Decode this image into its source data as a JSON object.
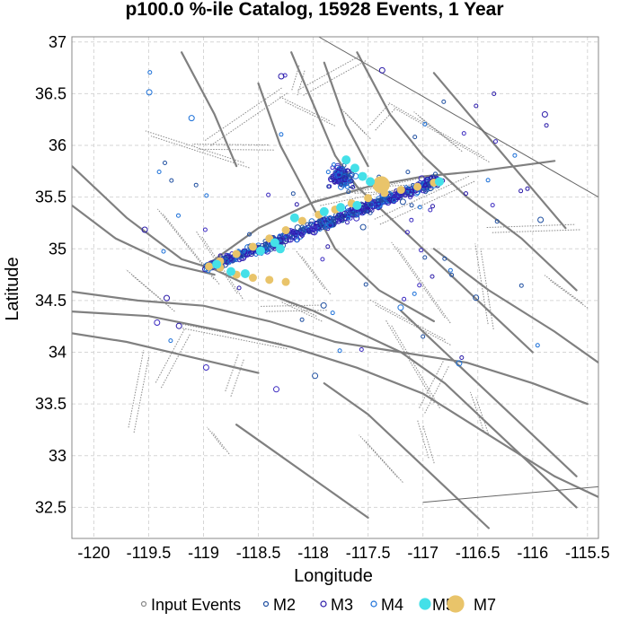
{
  "chart_data": {
    "type": "scatter",
    "title": "p100.0 %-ile Catalog, 15928 Events, 1 Year",
    "xlabel": "Longitude",
    "ylabel": "Latitude",
    "xlim": [
      -120.2,
      -115.4
    ],
    "ylim": [
      32.2,
      37.05
    ],
    "x_ticks": [
      -120,
      -119.5,
      -119,
      -118.5,
      -118,
      -117.5,
      -117,
      -116.5,
      -116,
      -115.5
    ],
    "x_tick_labels": [
      "-120",
      "-119.5",
      "-119",
      "-118.5",
      "-118",
      "-117.5",
      "-117",
      "-116.5",
      "-116",
      "-115.5"
    ],
    "y_ticks": [
      32.5,
      33,
      33.5,
      34,
      34.5,
      35,
      35.5,
      36,
      36.5,
      37
    ],
    "y_tick_labels": [
      "32.5",
      "33",
      "33.5",
      "34",
      "34.5",
      "35",
      "35.5",
      "36",
      "36.5",
      "37"
    ],
    "grid": true,
    "legend_placement": "bottom",
    "legend": [
      {
        "label": "Input Events",
        "marker": "open-circle-small",
        "color": "#888888"
      },
      {
        "label": "M2",
        "marker": "open-circle-small",
        "color": "#1f4fa0"
      },
      {
        "label": "M3",
        "marker": "open-circle",
        "color": "#2a1aa8"
      },
      {
        "label": "M4",
        "marker": "open-circle",
        "color": "#1a6fd8"
      },
      {
        "label": "M5",
        "marker": "filled-circle",
        "color": "#44e0e8"
      },
      {
        "label": "M7",
        "marker": "filled-circle-large",
        "color": "#e9c46a"
      }
    ],
    "series": [
      {
        "name": "M7",
        "color": "#e9c46a",
        "points": [
          {
            "x": -118.95,
            "y": 34.83
          },
          {
            "x": -118.85,
            "y": 34.82
          },
          {
            "x": -118.7,
            "y": 34.75
          },
          {
            "x": -118.55,
            "y": 34.72
          },
          {
            "x": -118.4,
            "y": 34.7
          },
          {
            "x": -118.25,
            "y": 34.68
          },
          {
            "x": -118.85,
            "y": 34.88
          },
          {
            "x": -118.7,
            "y": 34.95
          },
          {
            "x": -118.55,
            "y": 35.02
          },
          {
            "x": -118.4,
            "y": 35.1
          },
          {
            "x": -118.25,
            "y": 35.18
          },
          {
            "x": -118.1,
            "y": 35.27
          },
          {
            "x": -117.95,
            "y": 35.33
          },
          {
            "x": -117.8,
            "y": 35.38
          },
          {
            "x": -117.65,
            "y": 35.44
          },
          {
            "x": -117.5,
            "y": 35.49
          },
          {
            "x": -117.35,
            "y": 35.54
          },
          {
            "x": -117.2,
            "y": 35.57
          },
          {
            "x": -117.05,
            "y": 35.6
          },
          {
            "x": -116.9,
            "y": 35.64
          },
          {
            "x": -117.38,
            "y": 35.62
          }
        ]
      },
      {
        "name": "M5",
        "color": "#44e0e8",
        "points": [
          {
            "x": -118.88,
            "y": 34.85
          },
          {
            "x": -118.75,
            "y": 34.78
          },
          {
            "x": -118.62,
            "y": 34.76
          },
          {
            "x": -118.48,
            "y": 34.98
          },
          {
            "x": -118.35,
            "y": 35.06
          },
          {
            "x": -118.17,
            "y": 35.3
          },
          {
            "x": -117.9,
            "y": 35.36
          },
          {
            "x": -117.7,
            "y": 35.86
          },
          {
            "x": -117.62,
            "y": 35.78
          },
          {
            "x": -117.55,
            "y": 35.7
          },
          {
            "x": -117.48,
            "y": 35.65
          },
          {
            "x": -117.6,
            "y": 35.42
          },
          {
            "x": -116.85,
            "y": 35.65
          },
          {
            "x": -118.3,
            "y": 35.0
          },
          {
            "x": -117.75,
            "y": 35.4
          }
        ]
      }
    ]
  }
}
